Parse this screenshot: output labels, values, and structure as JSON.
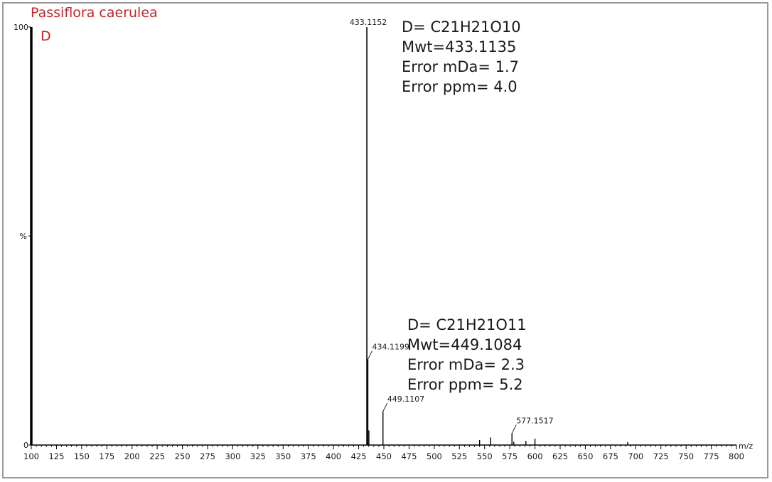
{
  "sample": {
    "title": "Passiflora caerulea",
    "subtitle": "D"
  },
  "annotations": [
    {
      "formula": "D= C21H21O10",
      "mwt": "Mwt=433.1135",
      "error_mda": "Error mDa= 1.7",
      "error_ppm": "Error ppm= 4.0"
    },
    {
      "formula": "D= C21H21O11",
      "mwt": "Mwt=449.1084",
      "error_mda": "Error mDa= 2.3",
      "error_ppm": "Error ppm= 5.2"
    }
  ],
  "chart_data": {
    "type": "bar",
    "title": "Passiflora caerulea",
    "subtitle": "D",
    "xlabel": "m/z",
    "ylabel": "%",
    "xlim": [
      100,
      800
    ],
    "ylim": [
      0,
      100
    ],
    "x_ticks": [
      100,
      125,
      150,
      175,
      200,
      225,
      250,
      275,
      300,
      325,
      350,
      375,
      400,
      425,
      450,
      475,
      500,
      525,
      550,
      575,
      600,
      625,
      650,
      675,
      700,
      725,
      750,
      775,
      800
    ],
    "y_tick_labels": [
      "0",
      "%",
      "100"
    ],
    "grid": false,
    "colors": {
      "peaks": "#000000",
      "sample_label": "#c0272d",
      "frame": "#9a9a9a"
    },
    "peaks": [
      {
        "mz": 433.1152,
        "intensity": 100,
        "label": "433.1152"
      },
      {
        "mz": 434.1199,
        "intensity": 20.5,
        "label": "434.1199"
      },
      {
        "mz": 435.12,
        "intensity": 3.5
      },
      {
        "mz": 449.1107,
        "intensity": 8,
        "label": "449.1107"
      },
      {
        "mz": 545.0,
        "intensity": 1.2
      },
      {
        "mz": 556.0,
        "intensity": 1.8
      },
      {
        "mz": 577.1517,
        "intensity": 2.8,
        "label": "577.1517"
      },
      {
        "mz": 579.0,
        "intensity": 0.8
      },
      {
        "mz": 591.0,
        "intensity": 1.0
      },
      {
        "mz": 600.0,
        "intensity": 1.5
      },
      {
        "mz": 692.0,
        "intensity": 0.7
      }
    ]
  }
}
